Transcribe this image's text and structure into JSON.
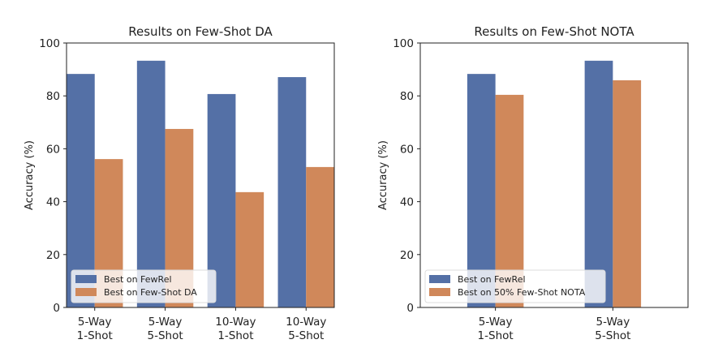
{
  "colors": {
    "series_a": "#5470a6",
    "series_b": "#d0885a"
  },
  "chart_data": [
    {
      "type": "bar",
      "title": "Results on Few-Shot DA",
      "xlabel": "",
      "ylabel": "Accuracy (%)",
      "ylim": [
        0,
        100
      ],
      "yticks": [
        "0",
        "20",
        "40",
        "60",
        "80",
        "100"
      ],
      "categories": [
        [
          "5-Way",
          "1-Shot"
        ],
        [
          "5-Way",
          "5-Shot"
        ],
        [
          "10-Way",
          "1-Shot"
        ],
        [
          "10-Way",
          "5-Shot"
        ]
      ],
      "series": [
        {
          "name": "Best on FewRel",
          "values": [
            88.3,
            93.3,
            80.7,
            87.1
          ]
        },
        {
          "name": "Best on Few-Shot DA",
          "values": [
            56.1,
            67.5,
            43.6,
            53.1
          ]
        }
      ],
      "legend": "lower-left",
      "grid": false
    },
    {
      "type": "bar",
      "title": "Results on Few-Shot NOTA",
      "xlabel": "",
      "ylabel": "Accuracy (%)",
      "ylim": [
        0,
        100
      ],
      "yticks": [
        "0",
        "20",
        "40",
        "60",
        "80",
        "100"
      ],
      "categories": [
        [
          "5-Way",
          "1-Shot"
        ],
        [
          "5-Way",
          "5-Shot"
        ]
      ],
      "series": [
        {
          "name": "Best on FewRel",
          "values": [
            88.3,
            93.3
          ]
        },
        {
          "name": "Best on 50% Few-Shot NOTA",
          "values": [
            80.4,
            85.9
          ]
        }
      ],
      "legend": "lower-left",
      "grid": false
    }
  ]
}
